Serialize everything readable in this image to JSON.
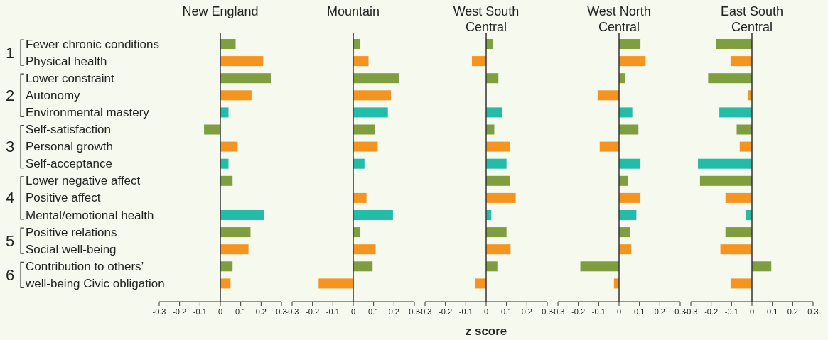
{
  "chart_data": [
    {
      "type": "bar",
      "orientation": "horizontal",
      "title": "New England",
      "categories": [
        "Fewer chronic conditions",
        "Physical health",
        "Lower constraint",
        "Autonomy",
        "Environmental mastery",
        "Self-satisfaction",
        "Personal growth",
        "Self-acceptance",
        "Lower negative affect",
        "Positive affect",
        "Mental/emotional health",
        "Positive relations",
        "Social well-being",
        "Contribution to others’",
        "well-being Civic obligation"
      ],
      "values": [
        0.075,
        0.21,
        0.25,
        0.153,
        0.04,
        -0.08,
        0.085,
        0.04,
        0.06,
        null,
        0.215,
        0.148,
        0.138,
        0.06,
        0.05
      ],
      "colors": [
        "#7e9e3f",
        "#f5941f",
        "#7e9e3f",
        "#f5941f",
        "#22bca8",
        "#7e9e3f",
        "#f5941f",
        "#22bca8",
        "#7e9e3f",
        "#f5941f",
        "#22bca8",
        "#7e9e3f",
        "#f5941f",
        "#7e9e3f",
        "#f5941f"
      ],
      "xlim": [
        -0.3,
        0.3
      ],
      "xticks": [
        -0.3,
        -0.2,
        -0.1,
        0,
        0.1,
        0.2,
        0.3
      ],
      "annotations": [
        "1",
        "2",
        "3",
        "4",
        "5",
        "6"
      ]
    },
    {
      "type": "bar",
      "orientation": "horizontal",
      "title": "Mountain",
      "tick_labels": "x",
      "categories": [
        null,
        null,
        null,
        null,
        null,
        null,
        null,
        null,
        null,
        null,
        null,
        null,
        null,
        null,
        null
      ],
      "values": [
        0.035,
        0.075,
        0.225,
        0.185,
        0.17,
        0.105,
        0.12,
        0.055,
        null,
        0.065,
        0.195,
        0.035,
        0.11,
        0.095,
        -0.17
      ],
      "colors": [
        "#7e9e3f",
        "#f5941f",
        "#7e9e3f",
        "#f5941f",
        "#22bca8",
        "#7e9e3f",
        "#f5941f",
        "#22bca8",
        "#7e9e3f",
        "#f5941f",
        "#22bca8",
        "#7e9e3f",
        "#f5941f",
        "#7e9e3f",
        "#f5941f"
      ],
      "xlim": [
        -0.3,
        0.3
      ],
      "xticks": [
        -0.3,
        -0.2,
        -0.1,
        0,
        0.1,
        0.2,
        0.3
      ]
    },
    {
      "type": "bar",
      "orientation": "horizontal",
      "title": "West South Central",
      "tick_labels": "x",
      "xlabel": "z score",
      "categories": [
        null,
        null,
        null,
        null,
        null,
        null,
        null,
        null,
        null,
        null,
        null,
        null,
        null,
        null,
        null
      ],
      "values": [
        0.035,
        -0.07,
        0.06,
        null,
        0.08,
        0.04,
        0.115,
        0.1,
        0.115,
        0.145,
        0.025,
        0.1,
        0.12,
        0.055,
        -0.055
      ],
      "colors": [
        "#7e9e3f",
        "#f5941f",
        "#7e9e3f",
        "#f5941f",
        "#22bca8",
        "#7e9e3f",
        "#f5941f",
        "#22bca8",
        "#7e9e3f",
        "#f5941f",
        "#22bca8",
        "#7e9e3f",
        "#f5941f",
        "#7e9e3f",
        "#f5941f"
      ],
      "xlim": [
        -0.3,
        0.3
      ],
      "xticks": [
        -0.3,
        -0.2,
        -0.1,
        0,
        0.1,
        0.2,
        0.3
      ]
    },
    {
      "type": "bar",
      "orientation": "horizontal",
      "title": "West North Central",
      "tick_labels": "x",
      "categories": [
        null,
        null,
        null,
        null,
        null,
        null,
        null,
        null,
        null,
        null,
        null,
        null,
        null,
        null,
        null
      ],
      "values": [
        0.105,
        0.13,
        0.03,
        -0.105,
        0.065,
        0.095,
        -0.095,
        0.105,
        0.045,
        0.105,
        0.085,
        0.055,
        0.06,
        -0.19,
        -0.025
      ],
      "colors": [
        "#7e9e3f",
        "#f5941f",
        "#7e9e3f",
        "#f5941f",
        "#22bca8",
        "#7e9e3f",
        "#f5941f",
        "#22bca8",
        "#7e9e3f",
        "#f5941f",
        "#22bca8",
        "#7e9e3f",
        "#f5941f",
        "#7e9e3f",
        "#f5941f"
      ],
      "xlim": [
        -0.3,
        0.3
      ],
      "xticks": [
        -0.3,
        -0.2,
        -0.1,
        0,
        0.1,
        0.2,
        0.3
      ]
    },
    {
      "type": "bar",
      "orientation": "horizontal",
      "title": "East South Central",
      "tick_labels": "x",
      "categories": [
        null,
        null,
        null,
        null,
        null,
        null,
        null,
        null,
        null,
        null,
        null,
        null,
        null,
        null,
        null
      ],
      "values": [
        -0.175,
        -0.105,
        -0.215,
        -0.02,
        -0.16,
        -0.075,
        -0.06,
        -0.265,
        -0.255,
        -0.13,
        -0.03,
        -0.13,
        -0.155,
        0.095,
        -0.105
      ],
      "colors": [
        "#7e9e3f",
        "#f5941f",
        "#7e9e3f",
        "#f5941f",
        "#22bca8",
        "#7e9e3f",
        "#f5941f",
        "#22bca8",
        "#7e9e3f",
        "#f5941f",
        "#22bca8",
        "#7e9e3f",
        "#f5941f",
        "#7e9e3f",
        "#f5941f"
      ],
      "xlim": [
        -0.3,
        0.3
      ],
      "xticks": [
        -0.3,
        -0.2,
        -0.1,
        0,
        0.1,
        0.2,
        0.3
      ]
    }
  ]
}
